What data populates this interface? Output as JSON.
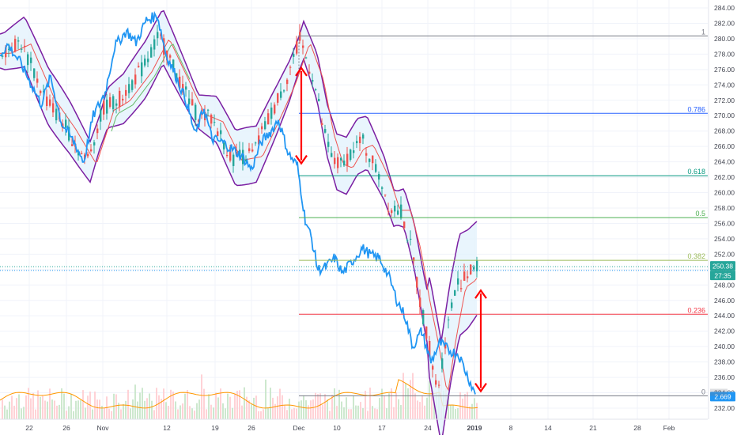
{
  "chart_data": {
    "type": "line",
    "ylim": [
      230.6,
      285.2
    ],
    "y_ticks": [
      "284.00",
      "282.00",
      "280.00",
      "278.00",
      "276.00",
      "274.00",
      "272.00",
      "270.00",
      "268.00",
      "266.00",
      "264.00",
      "262.00",
      "260.00",
      "258.00",
      "256.00",
      "254.00",
      "252.00",
      "250.00",
      "248.00",
      "246.00",
      "244.00",
      "242.00",
      "240.00",
      "238.00",
      "236.00",
      "234.00",
      "232.00"
    ],
    "x_ticks": [
      "22",
      "26",
      "Nov",
      "12",
      "19",
      "26",
      "Dec",
      "10",
      "17",
      "24",
      "2019",
      "8",
      "14",
      "21",
      "28",
      "Feb"
    ],
    "fib_levels": [
      {
        "label": "1",
        "value": 280.35,
        "color": "#787b86"
      },
      {
        "label": "0.786",
        "value": 270.3,
        "color": "#2962ff"
      },
      {
        "label": "0.618",
        "value": 262.2,
        "color": "#089981"
      },
      {
        "label": "0.5",
        "value": 256.75,
        "color": "#4caf50"
      },
      {
        "label": "0.382",
        "value": 251.2,
        "color": "#9bbb59"
      },
      {
        "label": "0.236",
        "value": 244.2,
        "color": "#f23645"
      },
      {
        "label": "0",
        "value": 233.6,
        "color": "#787b86"
      }
    ],
    "price_badges": {
      "last_price": "250.38",
      "countdown": "27:35",
      "compare_value": "2.669"
    },
    "colors": {
      "compare_line": "#2196f3",
      "bollinger_band": "#7b1fa2",
      "band_fill": "#e3f2fd",
      "ema": "#ef5350",
      "sma": "#66bb6a",
      "up_candle": "#26a69a",
      "down_candle": "#ef5350",
      "volume": "#e57373",
      "volume_ma": "#ff9800",
      "arrow": "#ff0000",
      "badge": "#26a69a",
      "compare_badge": "#2196f3"
    }
  }
}
